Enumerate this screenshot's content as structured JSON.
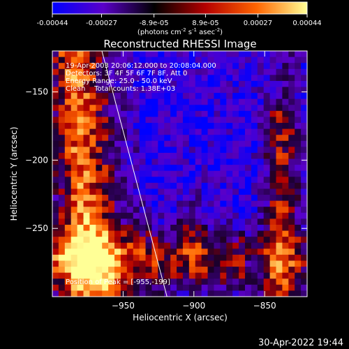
{
  "colorbar": {
    "tick_labels": [
      "-0.00044",
      "-0.00027",
      "-8.9e-05",
      "8.9e-05",
      "0.00027",
      "0.00044"
    ],
    "range": [
      -0.00044,
      0.00044
    ],
    "unit_label_parts": [
      "(photons cm",
      "-2",
      " s",
      "-1",
      " asec",
      "-2",
      ")"
    ],
    "colors": [
      "#0000ff",
      "#5a00c8",
      "#000000",
      "#b40000",
      "#ff6400",
      "#ffff96"
    ]
  },
  "chart_data": {
    "type": "heatmap",
    "title": "Reconstructed RHESSI Image",
    "xlabel": "Heliocentric X (arcsec)",
    "ylabel": "Heliocentric Y (arcsec)",
    "xlim": [
      -1000,
      -820
    ],
    "ylim": [
      -300,
      -120
    ],
    "x_ticks": [
      -950,
      -900,
      -850
    ],
    "x_tick_labels": [
      "−950",
      "−900",
      "−850"
    ],
    "y_ticks": [
      -150,
      -200,
      -250
    ],
    "y_tick_labels": [
      "−150",
      "−200",
      "−250"
    ],
    "annotations": [
      "19-Apr-2003 20:06:12.000 to 20:08:04.000",
      "Detectors: 3F 4F 5F 6F 7F 8F, Att 0",
      "Energy Range: 25.0 - 50.0 keV",
      "Clean    Total counts: 1.38E+03"
    ],
    "peak_label": "Position of Peak = [-955,-199]",
    "limb_line": {
      "x": [
        -965,
        -919
      ],
      "y": [
        -120,
        -300
      ]
    }
  },
  "footer": {
    "date": "30-Apr-2022 19:44"
  }
}
